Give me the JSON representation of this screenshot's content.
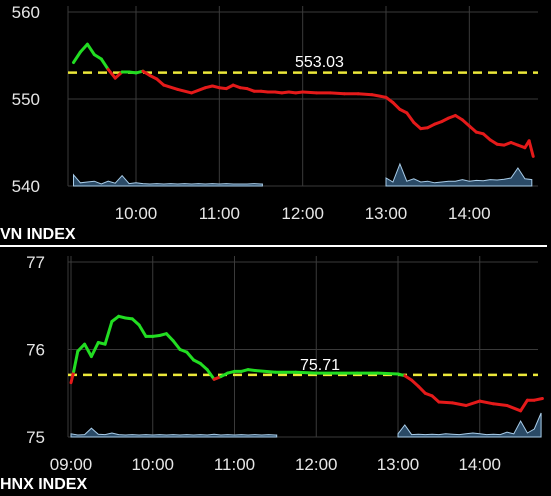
{
  "colors": {
    "background": "#000000",
    "grid": "#3a3a3a",
    "up": "#22dd22",
    "down": "#e41a1a",
    "reference": "#ece83a",
    "volume": "#a9cde9",
    "separator": "#ffffff"
  },
  "chart_data": [
    {
      "type": "line",
      "title": "VN INDEX",
      "xlabel": "",
      "ylabel": "",
      "x_ticks": [
        "10:00",
        "11:00",
        "12:00",
        "13:00",
        "14:00"
      ],
      "y_ticks": [
        "560",
        "550",
        "540"
      ],
      "ylim": [
        540,
        560
      ],
      "xlim": [
        "09:15",
        "14:46"
      ],
      "grid": true,
      "reference": {
        "value": 553.03,
        "label": "553.03",
        "style": "dashed"
      },
      "colors": "green above reference, red below",
      "series": [
        {
          "x": [
            "09:15",
            "09:20",
            "09:25",
            "09:30",
            "09:35",
            "09:40",
            "09:45",
            "09:50",
            "09:55",
            "10:00",
            "10:05",
            "10:10",
            "10:15",
            "10:20",
            "10:30",
            "10:40",
            "10:50",
            "10:55",
            "11:00",
            "11:05",
            "11:10",
            "11:15",
            "11:20",
            "11:25",
            "11:30",
            "11:35",
            "11:40",
            "11:45",
            "11:50",
            "11:55",
            "12:00",
            "12:10",
            "12:20",
            "12:30",
            "12:40",
            "12:50",
            "13:00",
            "13:05",
            "13:10",
            "13:15",
            "13:20",
            "13:25",
            "13:30",
            "13:35",
            "13:40",
            "13:45",
            "13:50",
            "13:55",
            "14:00",
            "14:05",
            "14:10",
            "14:15",
            "14:20",
            "14:25",
            "14:30",
            "14:35",
            "14:40",
            "14:43",
            "14:46"
          ],
          "y": [
            554.2,
            555.4,
            556.3,
            555.1,
            554.6,
            553.4,
            552.4,
            553.1,
            553.1,
            553.0,
            553.2,
            552.7,
            552.3,
            551.6,
            551.1,
            550.7,
            551.3,
            551.5,
            551.3,
            551.2,
            551.6,
            551.3,
            551.2,
            550.9,
            550.9,
            550.8,
            550.8,
            550.7,
            550.8,
            550.7,
            550.8,
            550.7,
            550.7,
            550.6,
            550.6,
            550.5,
            550.2,
            549.6,
            548.8,
            548.4,
            547.3,
            546.6,
            546.7,
            547.1,
            547.4,
            547.8,
            548.1,
            547.6,
            546.9,
            546.2,
            546.0,
            545.3,
            544.8,
            544.7,
            545.0,
            544.7,
            544.4,
            545.2,
            543.4
          ]
        }
      ],
      "volume": {
        "x": [
          "09:15",
          "09:20",
          "09:25",
          "09:30",
          "09:35",
          "09:40",
          "09:45",
          "09:50",
          "09:55",
          "10:00",
          "10:05",
          "10:10",
          "10:15",
          "10:20",
          "10:25",
          "10:30",
          "10:35",
          "10:40",
          "10:45",
          "10:50",
          "10:55",
          "11:00",
          "11:05",
          "11:10",
          "11:15",
          "11:20",
          "11:25",
          "11:30",
          "11:31",
          "13:00",
          "13:05",
          "13:10",
          "13:15",
          "13:20",
          "13:25",
          "13:30",
          "13:35",
          "13:40",
          "13:45",
          "13:50",
          "13:55",
          "14:00",
          "14:05",
          "14:10",
          "14:15",
          "14:20",
          "14:25",
          "14:30",
          "14:35",
          "14:40",
          "14:45"
        ],
        "values": [
          0.28,
          0.08,
          0.1,
          0.12,
          0.05,
          0.12,
          0.07,
          0.26,
          0.06,
          0.08,
          0.06,
          0.05,
          0.06,
          0.05,
          0.06,
          0.05,
          0.06,
          0.05,
          0.06,
          0.05,
          0.06,
          0.05,
          0.06,
          0.05,
          0.05,
          0.05,
          0.06,
          0.05,
          0.05,
          0.2,
          0.1,
          0.55,
          0.12,
          0.18,
          0.1,
          0.12,
          0.08,
          0.1,
          0.12,
          0.12,
          0.16,
          0.12,
          0.14,
          0.13,
          0.16,
          0.15,
          0.17,
          0.2,
          0.45,
          0.18,
          0.16
        ]
      }
    },
    {
      "type": "line",
      "title": "HNX INDEX",
      "xlabel": "",
      "ylabel": "",
      "x_ticks": [
        "09:00",
        "10:00",
        "11:00",
        "12:00",
        "13:00",
        "14:00"
      ],
      "y_ticks": [
        "77",
        "76",
        "75"
      ],
      "ylim": [
        75,
        77
      ],
      "xlim": [
        "09:00",
        "14:46"
      ],
      "grid": true,
      "reference": {
        "value": 75.71,
        "label": "75.71",
        "style": "dashed"
      },
      "colors": "green above reference, red below",
      "series": [
        {
          "x": [
            "09:00",
            "09:02",
            "09:05",
            "09:10",
            "09:15",
            "09:20",
            "09:25",
            "09:30",
            "09:35",
            "09:40",
            "09:45",
            "09:50",
            "09:55",
            "10:00",
            "10:05",
            "10:10",
            "10:15",
            "10:20",
            "10:25",
            "10:30",
            "10:35",
            "10:40",
            "10:45",
            "10:50",
            "10:55",
            "11:00",
            "11:05",
            "11:10",
            "11:15",
            "11:30",
            "11:45",
            "12:00",
            "12:15",
            "12:30",
            "12:45",
            "13:00",
            "13:05",
            "13:10",
            "13:15",
            "13:20",
            "13:25",
            "13:30",
            "13:40",
            "13:50",
            "14:00",
            "14:10",
            "14:20",
            "14:30",
            "14:35",
            "14:40",
            "14:46"
          ],
          "y": [
            75.62,
            75.75,
            75.98,
            76.06,
            75.92,
            76.08,
            76.06,
            76.32,
            76.38,
            76.36,
            76.35,
            76.28,
            76.15,
            76.15,
            76.16,
            76.18,
            76.1,
            76.0,
            75.97,
            75.88,
            75.84,
            75.77,
            75.66,
            75.69,
            75.73,
            75.75,
            75.75,
            75.77,
            75.76,
            75.74,
            75.74,
            75.73,
            75.73,
            75.73,
            75.73,
            75.72,
            75.7,
            75.65,
            75.58,
            75.5,
            75.47,
            75.4,
            75.39,
            75.36,
            75.41,
            75.38,
            75.36,
            75.3,
            75.42,
            75.42,
            75.44
          ]
        }
      ],
      "volume": {
        "x": [
          "09:00",
          "09:05",
          "09:10",
          "09:15",
          "09:20",
          "09:25",
          "09:30",
          "09:35",
          "09:40",
          "09:45",
          "09:50",
          "09:55",
          "10:00",
          "10:05",
          "10:10",
          "10:15",
          "10:20",
          "10:25",
          "10:30",
          "10:35",
          "10:40",
          "10:45",
          "10:50",
          "10:55",
          "11:00",
          "11:05",
          "11:10",
          "11:15",
          "11:20",
          "11:25",
          "11:30",
          "11:31",
          "13:00",
          "13:05",
          "13:10",
          "13:15",
          "13:20",
          "13:25",
          "13:30",
          "13:35",
          "13:40",
          "13:45",
          "13:50",
          "13:55",
          "14:00",
          "14:05",
          "14:10",
          "14:15",
          "14:20",
          "14:25",
          "14:30",
          "14:35",
          "14:40",
          "14:45"
        ],
        "values": [
          0.08,
          0.05,
          0.06,
          0.22,
          0.07,
          0.06,
          0.1,
          0.06,
          0.05,
          0.06,
          0.05,
          0.06,
          0.05,
          0.06,
          0.05,
          0.06,
          0.05,
          0.06,
          0.05,
          0.06,
          0.05,
          0.07,
          0.05,
          0.06,
          0.05,
          0.06,
          0.05,
          0.06,
          0.05,
          0.06,
          0.05,
          0.05,
          0.08,
          0.3,
          0.06,
          0.07,
          0.06,
          0.07,
          0.06,
          0.08,
          0.07,
          0.06,
          0.08,
          0.1,
          0.08,
          0.06,
          0.07,
          0.06,
          0.12,
          0.08,
          0.4,
          0.1,
          0.2,
          0.6
        ]
      }
    }
  ]
}
